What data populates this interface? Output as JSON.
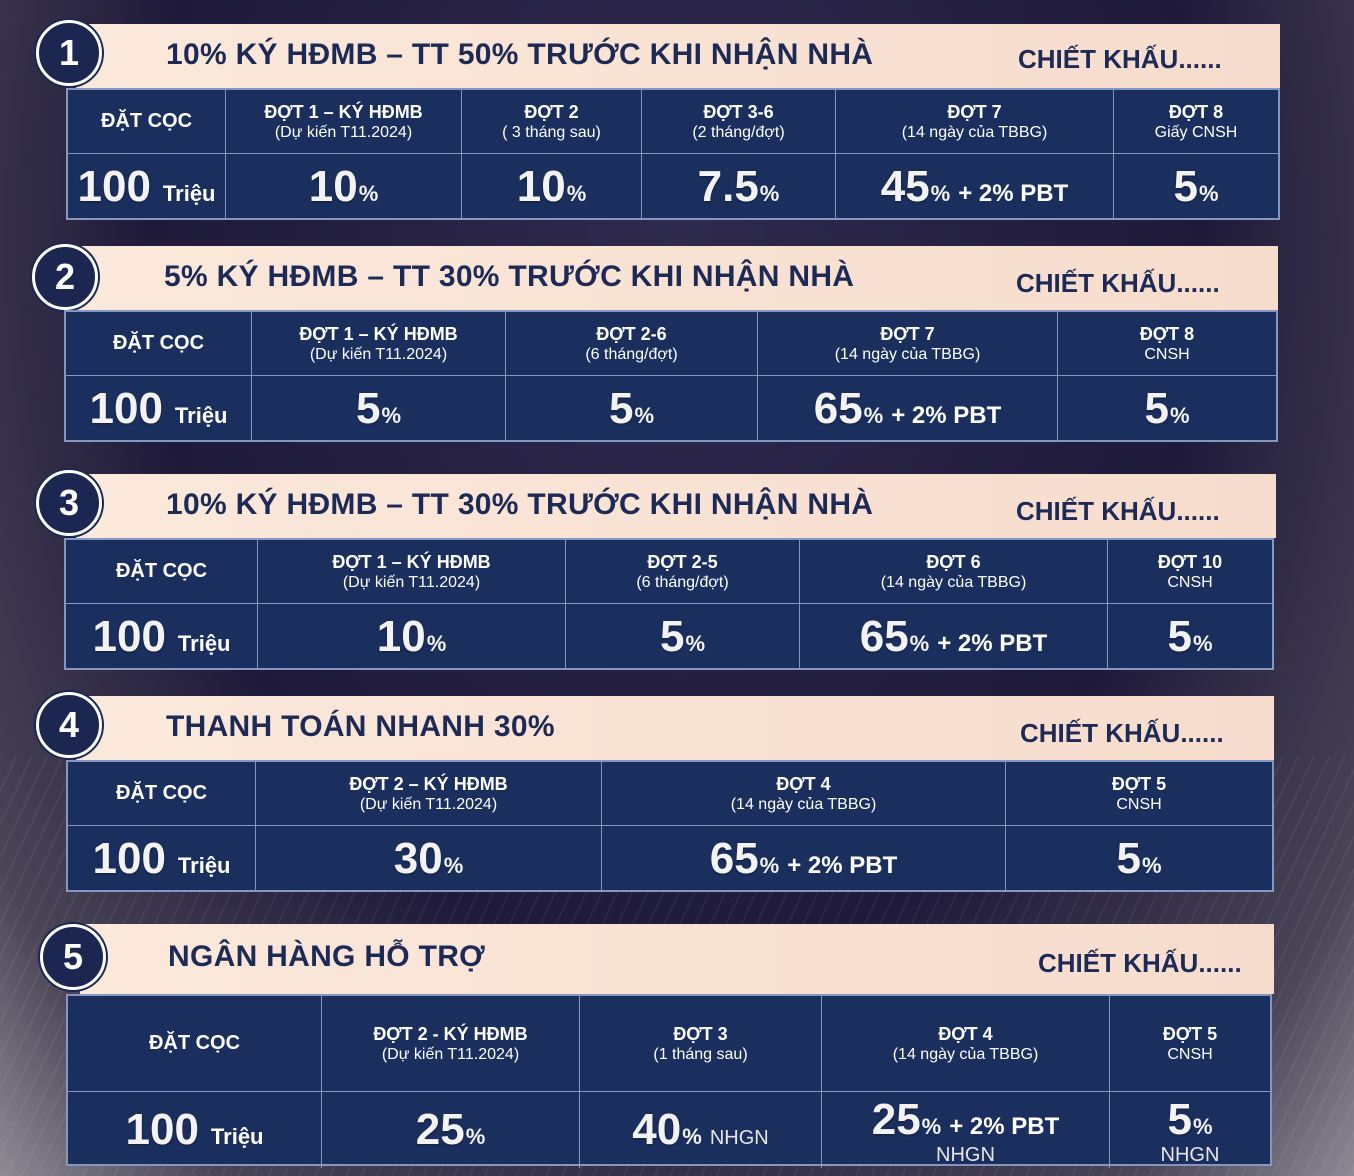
{
  "chiet_khau": "CHIẾT KHẤU......",
  "plans": [
    {
      "number": "1",
      "title": "10% KÝ HĐMB – TT 50% TRƯỚC KHI NHẬN NHÀ",
      "deposit_label": "ĐẶT CỌC",
      "deposit_value": "100",
      "deposit_unit": "Triệu",
      "columns": [
        {
          "name": "ĐỢT 1 – KÝ HĐMB",
          "sub": "(Dự kiến T11.2024)",
          "value": "10",
          "pct": "%",
          "extra": ""
        },
        {
          "name": "ĐỢT 2",
          "sub": "( 3 tháng sau)",
          "value": "10",
          "pct": "%",
          "extra": ""
        },
        {
          "name": "ĐỢT 3-6",
          "sub": "(2 tháng/đợt)",
          "value": "7.5",
          "pct": "%",
          "extra": ""
        },
        {
          "name": "ĐỢT 7",
          "sub": "(14 ngày của TBBG)",
          "value": "45",
          "pct": "%",
          "extra": "+ 2% PBT"
        },
        {
          "name": "ĐỢT 8",
          "sub": "Giấy CNSH",
          "value": "5",
          "pct": "%",
          "extra": ""
        }
      ]
    },
    {
      "number": "2",
      "title": "5% KÝ HĐMB – TT 30% TRƯỚC KHI NHẬN NHÀ",
      "deposit_label": "ĐẶT CỌC",
      "deposit_value": "100",
      "deposit_unit": "Triệu",
      "columns": [
        {
          "name": "ĐỢT 1 – KÝ HĐMB",
          "sub": "(Dự kiến T11.2024)",
          "value": "5",
          "pct": "%",
          "extra": ""
        },
        {
          "name": "ĐỢT 2-6",
          "sub": "(6 tháng/đợt)",
          "value": "5",
          "pct": "%",
          "extra": ""
        },
        {
          "name": "ĐỢT 7",
          "sub": "(14 ngày của TBBG)",
          "value": "65",
          "pct": "%",
          "extra": "+ 2% PBT"
        },
        {
          "name": "ĐỢT 8",
          "sub": "CNSH",
          "value": "5",
          "pct": "%",
          "extra": ""
        }
      ]
    },
    {
      "number": "3",
      "title": "10% KÝ HĐMB – TT 30% TRƯỚC KHI NHẬN NHÀ",
      "deposit_label": "ĐẶT CỌC",
      "deposit_value": "100",
      "deposit_unit": "Triệu",
      "columns": [
        {
          "name": "ĐỢT 1 – KÝ HĐMB",
          "sub": "(Dự kiến T11.2024)",
          "value": "10",
          "pct": "%",
          "extra": ""
        },
        {
          "name": "ĐỢT 2-5",
          "sub": "(6 tháng/đợt)",
          "value": "5",
          "pct": "%",
          "extra": ""
        },
        {
          "name": "ĐỢT 6",
          "sub": "(14 ngày của TBBG)",
          "value": "65",
          "pct": "%",
          "extra": "+ 2% PBT"
        },
        {
          "name": "ĐỢT 10",
          "sub": "CNSH",
          "value": "5",
          "pct": "%",
          "extra": ""
        }
      ]
    },
    {
      "number": "4",
      "title": "THANH TOÁN NHANH 30%",
      "deposit_label": "ĐẶT CỌC",
      "deposit_value": "100",
      "deposit_unit": "Triệu",
      "columns": [
        {
          "name": "ĐỢT 2 – KÝ HĐMB",
          "sub": "(Dự kiến T11.2024)",
          "value": "30",
          "pct": "%",
          "extra": ""
        },
        {
          "name": "ĐỢT 4",
          "sub": "(14 ngày của TBBG)",
          "value": "65",
          "pct": "%",
          "extra": "+ 2% PBT"
        },
        {
          "name": "ĐỢT 5",
          "sub": "CNSH",
          "value": "5",
          "pct": "%",
          "extra": ""
        }
      ]
    },
    {
      "number": "5",
      "title": "NGÂN HÀNG HỖ TRỢ",
      "deposit_label": "ĐẶT CỌC",
      "deposit_value": "100",
      "deposit_unit": "Triệu",
      "columns": [
        {
          "name": "ĐỢT 2  - KÝ HĐMB",
          "sub": "(Dự kiến T11.2024)",
          "value": "25",
          "pct": "%",
          "extra": ""
        },
        {
          "name": "ĐỢT 3",
          "sub": "(1 tháng sau)",
          "value": "40",
          "pct": "%",
          "extra": "",
          "note": "NHGN"
        },
        {
          "name": "ĐỢT 4",
          "sub": "(14 ngày của TBBG)",
          "value": "25",
          "pct": "%",
          "extra": "+ 2% PBT",
          "note_under": "NHGN"
        },
        {
          "name": "ĐỢT 5",
          "sub": "CNSH",
          "value": "5",
          "pct": "%",
          "extra": "",
          "note_under": "NHGN"
        }
      ]
    }
  ]
}
